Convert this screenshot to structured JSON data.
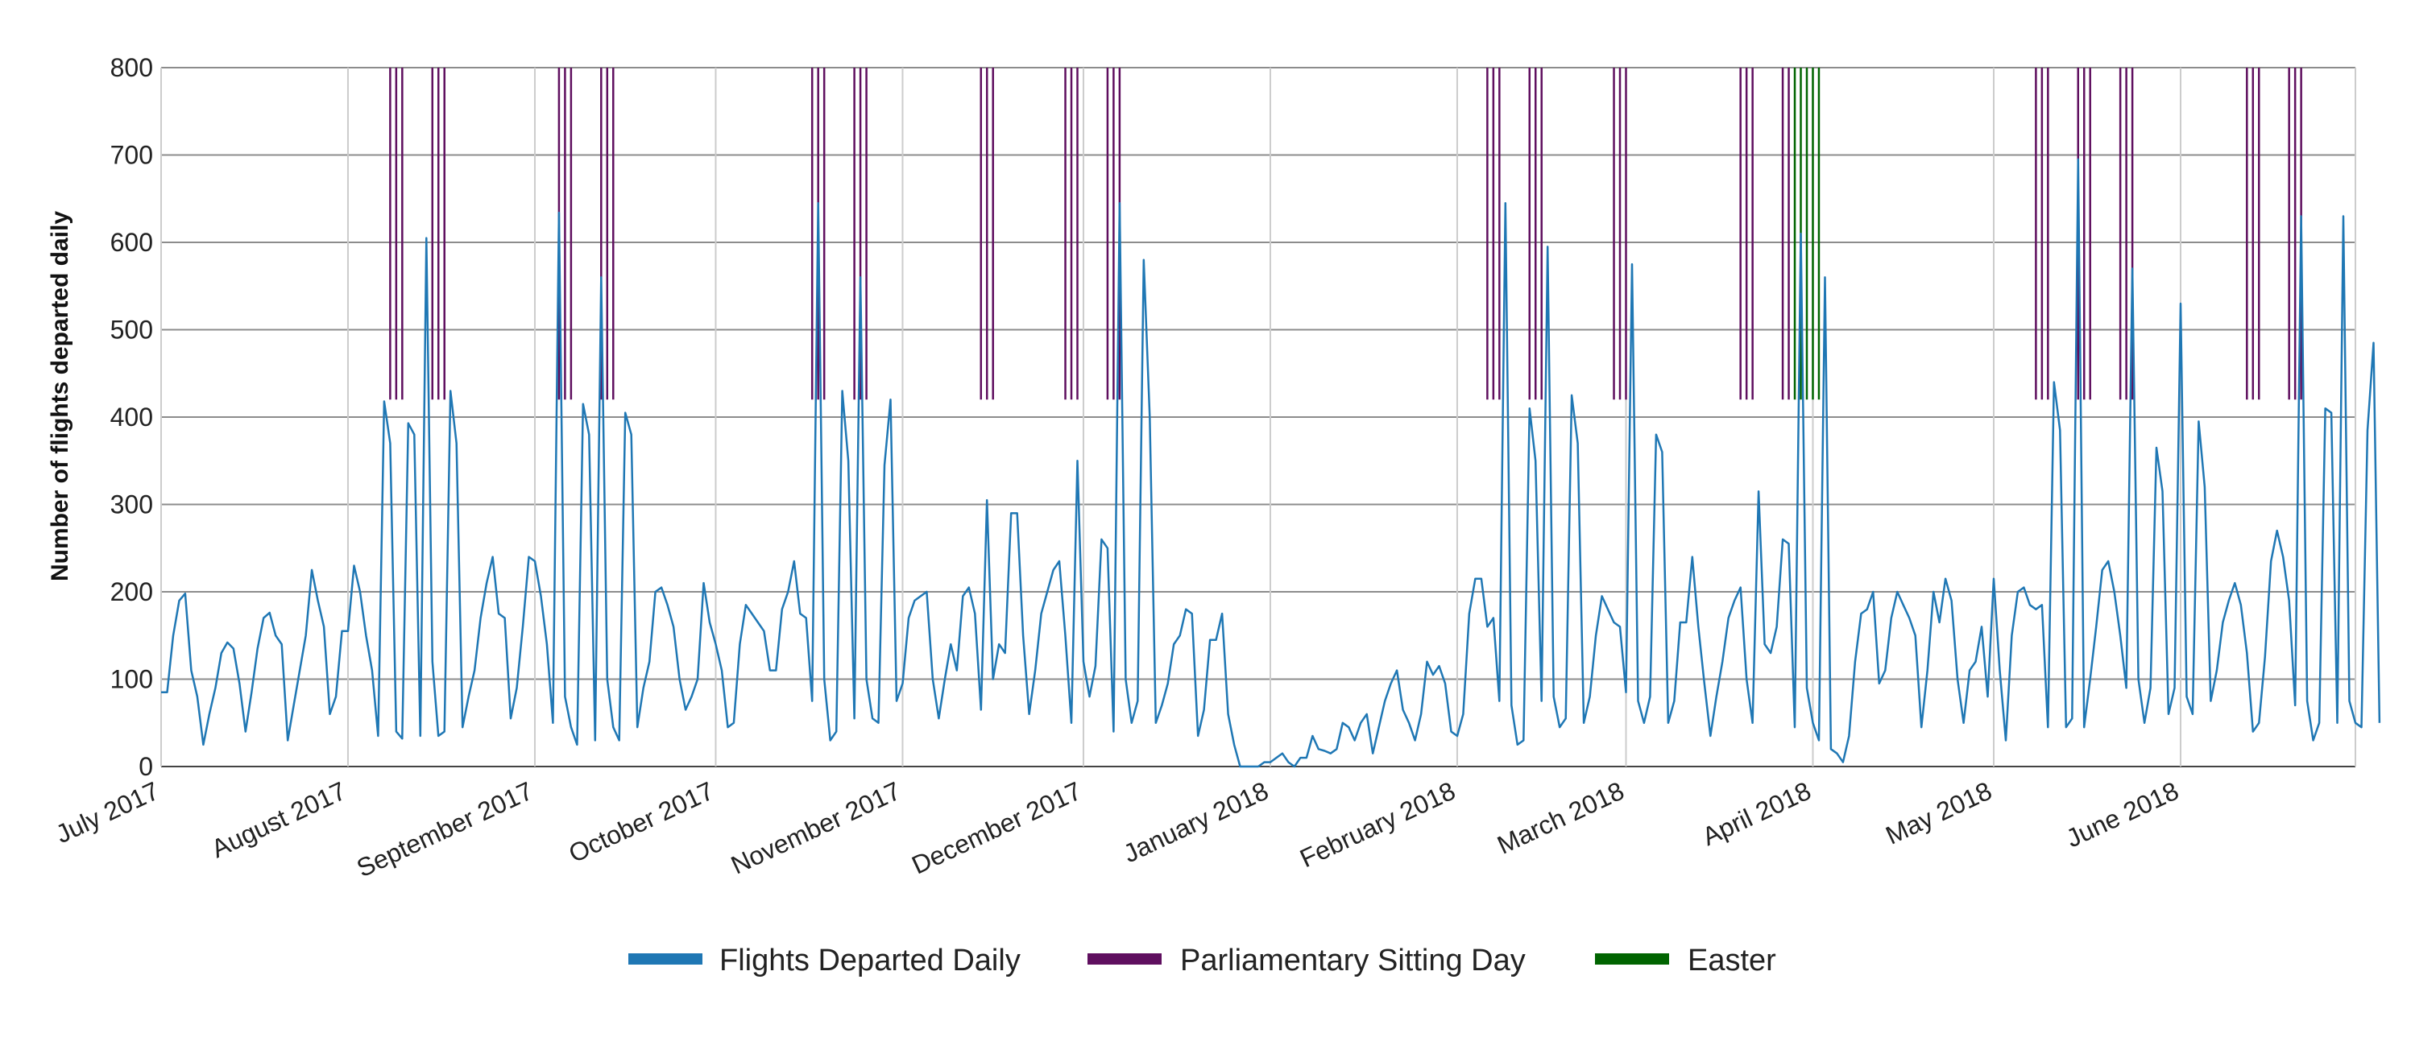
{
  "chart_data": {
    "type": "line",
    "title": "",
    "xlabel": "",
    "ylabel": "Number of flights departed daily",
    "ylim": [
      0,
      800
    ],
    "yticks": [
      0,
      100,
      200,
      300,
      400,
      500,
      600,
      700,
      800
    ],
    "x_start_date": "2017-07-01",
    "x_end_date": "2018-06-30",
    "xticks": [
      {
        "date": "2017-07-01",
        "label": "July 2017"
      },
      {
        "date": "2017-08-01",
        "label": "August 2017"
      },
      {
        "date": "2017-09-01",
        "label": "September 2017"
      },
      {
        "date": "2017-10-01",
        "label": "October 2017"
      },
      {
        "date": "2017-11-01",
        "label": "November 2017"
      },
      {
        "date": "2017-12-01",
        "label": "December 2017"
      },
      {
        "date": "2018-01-01",
        "label": "January 2018"
      },
      {
        "date": "2018-02-01",
        "label": "February 2018"
      },
      {
        "date": "2018-03-01",
        "label": "March 2018"
      },
      {
        "date": "2018-04-01",
        "label": "April 2018"
      },
      {
        "date": "2018-05-01",
        "label": "May 2018"
      },
      {
        "date": "2018-06-01",
        "label": "June 2018"
      }
    ],
    "grid": true,
    "legend_position": "bottom-center",
    "series": [
      {
        "name": "Flights Departed Daily",
        "color": "#1f77b4",
        "kind": "line",
        "values": [
          85,
          85,
          150,
          190,
          198,
          110,
          80,
          25,
          60,
          90,
          130,
          142,
          135,
          95,
          40,
          85,
          135,
          170,
          176,
          150,
          140,
          30,
          70,
          110,
          150,
          225,
          190,
          160,
          60,
          80,
          155,
          155,
          230,
          200,
          150,
          110,
          35,
          418,
          370,
          40,
          32,
          393,
          380,
          35,
          605,
          120,
          35,
          40,
          430,
          370,
          45,
          80,
          110,
          170,
          210,
          240,
          175,
          170,
          55,
          90,
          160,
          240,
          235,
          195,
          140,
          50,
          634,
          80,
          45,
          25,
          415,
          380,
          30,
          560,
          100,
          45,
          30,
          405,
          380,
          45,
          90,
          120,
          200,
          205,
          185,
          160,
          100,
          65,
          80,
          100,
          210,
          165,
          140,
          110,
          45,
          50,
          140,
          185,
          175,
          165,
          155,
          110,
          110,
          180,
          200,
          235,
          175,
          170,
          75,
          645,
          100,
          30,
          40,
          430,
          350,
          55,
          560,
          100,
          55,
          50,
          345,
          420,
          75,
          95,
          170,
          190,
          195,
          200,
          100,
          55,
          100,
          140,
          110,
          195,
          205,
          175,
          65,
          305,
          100,
          140,
          130,
          290,
          290,
          150,
          60,
          110,
          175,
          200,
          225,
          235,
          150,
          50,
          350,
          120,
          80,
          115,
          260,
          250,
          40,
          645,
          100,
          50,
          75,
          580,
          400,
          50,
          70,
          95,
          140,
          150,
          180,
          175,
          35,
          65,
          145,
          145,
          175,
          60,
          25,
          0,
          0,
          0,
          0,
          5,
          5,
          10,
          15,
          5,
          0,
          10,
          10,
          35,
          20,
          18,
          15,
          20,
          50,
          45,
          30,
          50,
          60,
          15,
          45,
          75,
          95,
          110,
          65,
          50,
          30,
          60,
          120,
          105,
          115,
          95,
          40,
          35,
          60,
          175,
          215,
          215,
          160,
          170,
          75,
          645,
          70,
          25,
          30,
          410,
          350,
          75,
          595,
          80,
          45,
          55,
          425,
          370,
          50,
          80,
          150,
          195,
          180,
          165,
          160,
          85,
          575,
          75,
          50,
          80,
          380,
          360,
          50,
          75,
          165,
          165,
          240,
          160,
          95,
          35,
          80,
          120,
          170,
          190,
          205,
          100,
          50,
          315,
          140,
          130,
          160,
          260,
          255,
          45,
          610,
          90,
          50,
          30,
          560,
          20,
          15,
          5,
          35,
          120,
          175,
          180,
          200,
          95,
          110,
          170,
          200,
          185,
          170,
          150,
          45,
          110,
          200,
          165,
          215,
          190,
          100,
          50,
          110,
          120,
          160,
          80,
          215,
          110,
          30,
          150,
          200,
          205,
          185,
          180,
          185,
          45,
          440,
          385,
          45,
          55,
          695,
          45,
          100,
          160,
          225,
          235,
          200,
          150,
          90,
          570,
          100,
          50,
          90,
          365,
          315,
          60,
          90,
          530,
          80,
          60,
          395,
          320,
          75,
          110,
          165,
          190,
          210,
          185,
          130,
          40,
          50,
          125,
          235,
          270,
          240,
          190,
          70,
          630,
          75,
          30,
          50,
          410,
          405,
          50,
          630,
          75,
          50,
          45,
          385,
          485,
          50
        ]
      },
      {
        "name": "Parliamentary Sitting Day",
        "color": "#5f0f5f",
        "kind": "markers",
        "dates": [
          "2017-08-08",
          "2017-08-09",
          "2017-08-10",
          "2017-08-15",
          "2017-08-16",
          "2017-08-17",
          "2017-09-05",
          "2017-09-06",
          "2017-09-07",
          "2017-09-12",
          "2017-09-13",
          "2017-09-14",
          "2017-10-17",
          "2017-10-18",
          "2017-10-19",
          "2017-10-24",
          "2017-10-25",
          "2017-10-26",
          "2017-11-14",
          "2017-11-15",
          "2017-11-16",
          "2017-11-28",
          "2017-11-29",
          "2017-11-30",
          "2017-12-05",
          "2017-12-06",
          "2017-12-07",
          "2018-02-06",
          "2018-02-07",
          "2018-02-08",
          "2018-02-13",
          "2018-02-14",
          "2018-02-15",
          "2018-02-27",
          "2018-02-28",
          "2018-03-01",
          "2018-03-20",
          "2018-03-21",
          "2018-03-22",
          "2018-03-27",
          "2018-03-28",
          "2018-05-08",
          "2018-05-09",
          "2018-05-10",
          "2018-05-15",
          "2018-05-16",
          "2018-05-17",
          "2018-05-22",
          "2018-05-23",
          "2018-05-24",
          "2018-06-12",
          "2018-06-13",
          "2018-06-14",
          "2018-06-19",
          "2018-06-20",
          "2018-06-21"
        ],
        "marker_range": [
          420,
          800
        ]
      },
      {
        "name": "Easter",
        "color": "#006400",
        "kind": "markers",
        "dates": [
          "2018-03-29",
          "2018-03-30",
          "2018-03-31",
          "2018-04-01",
          "2018-04-02"
        ],
        "marker_range": [
          420,
          800
        ]
      }
    ]
  }
}
